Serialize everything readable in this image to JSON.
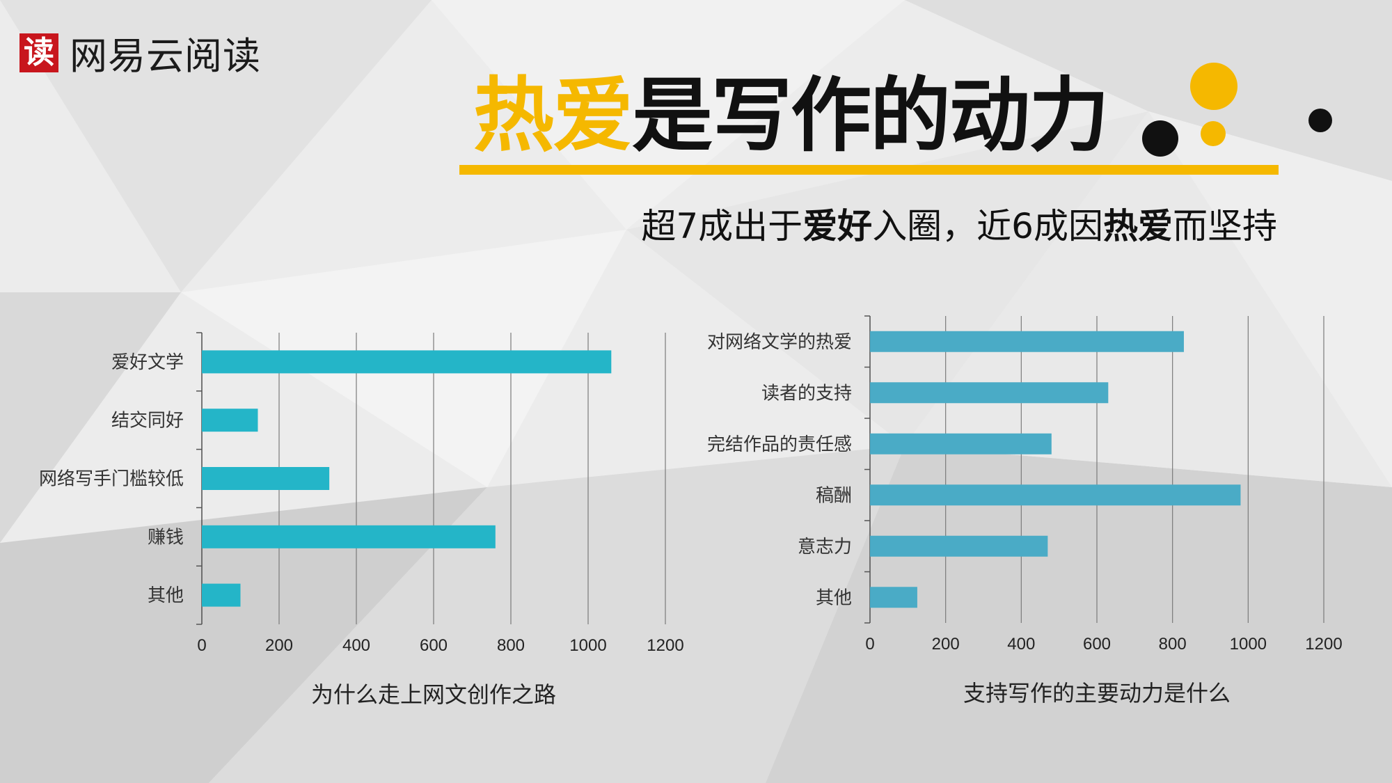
{
  "logo": {
    "mark": "读",
    "name": "网易云阅读"
  },
  "headline": {
    "highlight": "热爱",
    "rest": "是写作的动力"
  },
  "subtitle": {
    "parts": [
      {
        "text": "超7成出于",
        "bold": false
      },
      {
        "text": "爱好",
        "bold": true
      },
      {
        "text": "入圈，近6成因",
        "bold": false
      },
      {
        "text": "热爱",
        "bold": true
      },
      {
        "text": "而坚持",
        "bold": false
      }
    ]
  },
  "colors": {
    "accent": "#f5b800",
    "bar_left": "#24b5c8",
    "bar_right": "#4aabc6",
    "dot_dark": "#111111"
  },
  "chart_data": [
    {
      "type": "bar",
      "orientation": "horizontal",
      "title": "为什么走上网文创作之路",
      "categories": [
        "爱好文学",
        "结交同好",
        "网络写手门槛较低",
        "赚钱",
        "其他"
      ],
      "values": [
        1060,
        145,
        330,
        760,
        100
      ],
      "xlim": [
        0,
        1200
      ],
      "ticks": [
        0,
        200,
        400,
        600,
        800,
        1000,
        1200
      ],
      "grid": true
    },
    {
      "type": "bar",
      "orientation": "horizontal",
      "title": "支持写作的主要动力是什么",
      "categories": [
        "对网络文学的热爱",
        "读者的支持",
        "完结作品的责任感",
        "稿酬",
        "意志力",
        "其他"
      ],
      "values": [
        830,
        630,
        480,
        980,
        470,
        125
      ],
      "xlim": [
        0,
        1200
      ],
      "ticks": [
        0,
        200,
        400,
        600,
        800,
        1000,
        1200
      ],
      "grid": true
    }
  ]
}
